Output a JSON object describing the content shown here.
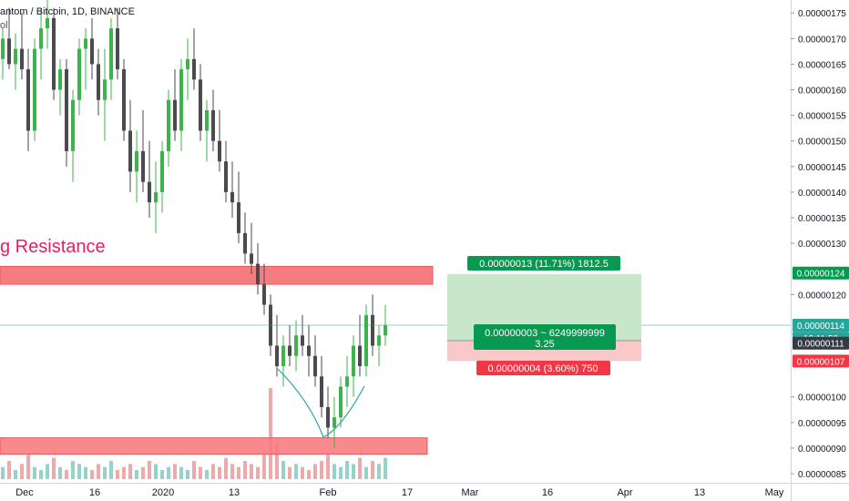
{
  "header": {
    "symbol": "antom / Bitcoin, 1D, BINANCE",
    "sub": "ol"
  },
  "colors": {
    "bull": "#26a69a",
    "bear": "#4a4a4f",
    "bull_candle": "#3db44a",
    "resistance_fill": "#f77c80",
    "resistance_text": "#e91e63",
    "target_fill": "#c8e6c9",
    "stop_fill": "#f9c9c9",
    "label_green": "#089950",
    "label_red": "#f23645",
    "last_price_bg": "#26a69a"
  },
  "annotations": {
    "resistance_label": "g Resistance",
    "target_label": "0.00000013 (11.71%) 1812.5",
    "ratio_label_line1": "0.00000003 ~ 6249999999",
    "ratio_label_line2": "3.25",
    "stop_label": "0.00000004 (3.60%) 750"
  },
  "price_scale": {
    "ticks": [
      "0.00000175",
      "0.00000170",
      "0.00000165",
      "0.00000160",
      "0.00000155",
      "0.00000150",
      "0.00000145",
      "0.00000140",
      "0.00000135",
      "0.00000130",
      "0.00000120",
      "0.00000100",
      "0.00000095",
      "0.00000090",
      "0.00000085"
    ],
    "badges": [
      {
        "text": "0.00000124",
        "color": "#089950",
        "price": 124.2
      },
      {
        "text": "0.00000114",
        "color": "#26a69a",
        "price": 114
      },
      {
        "text": "12:11:50",
        "color": "#26a69a",
        "price": 111.5,
        "dim": true
      },
      {
        "text": "0.00000111",
        "color": "#363a45",
        "price": 110.5
      },
      {
        "text": "0.00000107",
        "color": "#f23645",
        "price": 107
      }
    ]
  },
  "time_scale": {
    "ticks": [
      "Dec",
      "16",
      "2020",
      "13",
      "Feb",
      "17",
      "Mar",
      "16",
      "Apr",
      "13",
      "May"
    ]
  },
  "chart_data": {
    "type": "candlestick",
    "title": "antom / Bitcoin, 1D, BINANCE",
    "y_unit": "x1e-8 BTC",
    "ylim": [
      85,
      177
    ],
    "grid": false,
    "levels": {
      "resistance_top": 125.5,
      "resistance_bottom": 122,
      "support_top": 92,
      "support_bottom": 88.8,
      "entry": 111,
      "target": 124,
      "stop": 107,
      "current": 114
    },
    "candles": [
      [
        166,
        172,
        162,
        170
      ],
      [
        170,
        176,
        164,
        165
      ],
      [
        165,
        171,
        160,
        168
      ],
      [
        168,
        175,
        162,
        164
      ],
      [
        164,
        168,
        148,
        152
      ],
      [
        152,
        170,
        150,
        168
      ],
      [
        168,
        176,
        162,
        172
      ],
      [
        172,
        178,
        168,
        174
      ],
      [
        174,
        176,
        158,
        160
      ],
      [
        160,
        166,
        155,
        164
      ],
      [
        164,
        166,
        145,
        148
      ],
      [
        148,
        160,
        142,
        158
      ],
      [
        158,
        170,
        155,
        168
      ],
      [
        168,
        172,
        160,
        170
      ],
      [
        170,
        174,
        162,
        165
      ],
      [
        165,
        168,
        155,
        158
      ],
      [
        158,
        168,
        150,
        162
      ],
      [
        162,
        174,
        158,
        172
      ],
      [
        172,
        176,
        162,
        164
      ],
      [
        164,
        166,
        150,
        152
      ],
      [
        152,
        158,
        140,
        144
      ],
      [
        144,
        152,
        138,
        148
      ],
      [
        148,
        156,
        140,
        142
      ],
      [
        142,
        150,
        135,
        138
      ],
      [
        138,
        146,
        132,
        140
      ],
      [
        140,
        150,
        136,
        148
      ],
      [
        148,
        160,
        145,
        158
      ],
      [
        158,
        164,
        150,
        152
      ],
      [
        152,
        166,
        148,
        164
      ],
      [
        164,
        170,
        158,
        166
      ],
      [
        166,
        172,
        160,
        162
      ],
      [
        162,
        165,
        150,
        152
      ],
      [
        152,
        158,
        146,
        156
      ],
      [
        156,
        160,
        148,
        150
      ],
      [
        150,
        156,
        144,
        146
      ],
      [
        146,
        150,
        138,
        140
      ],
      [
        140,
        146,
        135,
        138
      ],
      [
        138,
        144,
        130,
        132
      ],
      [
        132,
        136,
        126,
        128
      ],
      [
        128,
        134,
        124,
        126
      ],
      [
        126,
        130,
        120,
        122
      ],
      [
        122,
        126,
        116,
        118
      ],
      [
        118,
        120,
        108,
        110
      ],
      [
        110,
        116,
        104,
        106
      ],
      [
        106,
        112,
        102,
        110
      ],
      [
        110,
        114,
        106,
        108
      ],
      [
        108,
        115,
        105,
        112
      ],
      [
        112,
        116,
        108,
        110
      ],
      [
        110,
        114,
        104,
        108
      ],
      [
        108,
        112,
        102,
        104
      ],
      [
        104,
        108,
        96,
        98
      ],
      [
        98,
        102,
        92,
        94
      ],
      [
        94,
        100,
        90,
        96
      ],
      [
        96,
        104,
        94,
        102
      ],
      [
        102,
        108,
        98,
        104
      ],
      [
        104,
        112,
        100,
        110
      ],
      [
        110,
        116,
        104,
        106
      ],
      [
        106,
        118,
        104,
        116
      ],
      [
        116,
        120,
        108,
        110
      ],
      [
        110,
        114,
        106,
        112
      ],
      [
        112,
        118,
        110,
        114
      ]
    ],
    "volumes": [
      4,
      6,
      3,
      5,
      8,
      4,
      3,
      5,
      7,
      4,
      3,
      6,
      5,
      4,
      3,
      5,
      4,
      6,
      3,
      4,
      5,
      3,
      4,
      6,
      5,
      3,
      4,
      5,
      4,
      3,
      6,
      4,
      3,
      5,
      4,
      7,
      5,
      4,
      6,
      5,
      4,
      8,
      30,
      12,
      6,
      4,
      5,
      4,
      3,
      5,
      6,
      8,
      5,
      4,
      6,
      5,
      7,
      4,
      6,
      5,
      7
    ]
  }
}
